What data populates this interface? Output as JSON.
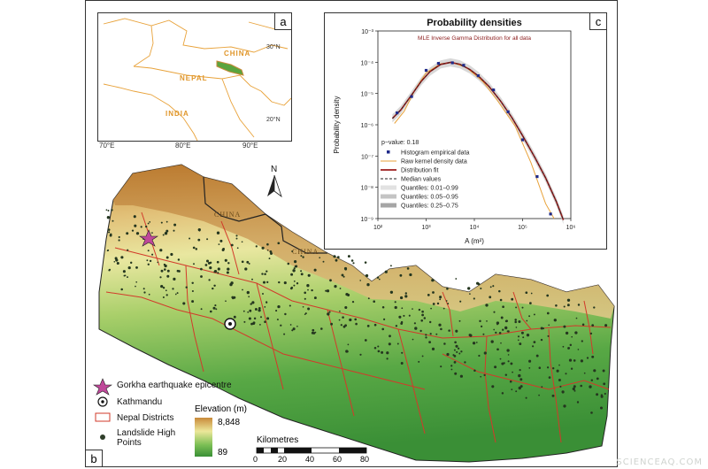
{
  "panels": {
    "a": "a",
    "b": "b",
    "c": "c"
  },
  "inset_map": {
    "countries": [
      "CHINA",
      "NEPAL",
      "INDIA"
    ],
    "lat_labels": [
      "30°N",
      "20°N"
    ],
    "lon_labels": [
      "70°E",
      "80°E",
      "90°E"
    ]
  },
  "main_map": {
    "north_label": "N",
    "country_labels": [
      "CHINA",
      "CHINA"
    ],
    "landslide_density": "high in hills and mid-mountains, sparse in lowland south",
    "epicentre": "Gorkha earthquake epicentre",
    "city": "Kathmandu"
  },
  "legend": {
    "epicentre": "Gorkha earthquake epicentre",
    "city": "Kathmandu",
    "districts": "Nepal Districts",
    "landslides": "Landslide High Points",
    "elevation_title": "Elevation (m)",
    "elevation_max": "8,848",
    "elevation_min": "89",
    "scale_title": "Kilometres",
    "scale_ticks": [
      "0",
      "20",
      "40",
      "60",
      "80"
    ]
  },
  "colors": {
    "elev_high": "#c98a3a",
    "elev_mid": "#e7e59a",
    "elev_low": "#3f9a3a",
    "district_line": "#d23a2a",
    "fit_line": "#9b1c1c",
    "kernel_line": "#e8a23a",
    "points": "#1f2a8a",
    "epicentre": "#c0489a"
  },
  "chart_data": {
    "type": "line",
    "title": "Probability densities",
    "subtitle": "MLE Inverse Gamma Distribution for all data",
    "xlabel": "A (m²)",
    "ylabel": "Probability density",
    "x_scale": "log",
    "y_scale": "log",
    "xlim": [
      100,
      1000000
    ],
    "ylim": [
      1e-09,
      0.001
    ],
    "x_ticks": [
      "10²",
      "10³",
      "10⁴",
      "10⁵",
      "10⁶"
    ],
    "y_ticks": [
      "10⁻³",
      "10⁻⁴",
      "10⁻⁵",
      "10⁻⁶",
      "10⁻⁷",
      "10⁻⁸",
      "10⁻⁹"
    ],
    "annotation": "p−value: 0.18",
    "legend": [
      "Histogram empirical data",
      "Raw kernel density data",
      "Distribution fit",
      "Median values",
      "Quantiles: 0.01−0.99",
      "Quantiles: 0.05−0.95",
      "Quantiles: 0.25−0.75"
    ],
    "series": [
      {
        "name": "Histogram empirical data",
        "x": [
          250,
          500,
          1000,
          1800,
          3500,
          6000,
          12000,
          25000,
          50000,
          100000,
          200000,
          380000
        ],
        "y": [
          2.4e-06,
          8e-06,
          5.5e-05,
          9.2e-05,
          9.6e-05,
          8e-05,
          3.7e-05,
          1.3e-05,
          2.6e-06,
          3.3e-07,
          2.2e-08,
          1.4e-09
        ]
      },
      {
        "name": "Distribution fit",
        "x": [
          200,
          300,
          500,
          800,
          1200,
          2000,
          3200,
          5000,
          8000,
          12000,
          20000,
          35000,
          60000,
          100000,
          180000,
          300000,
          500000,
          700000
        ],
        "y": [
          1.6e-06,
          3e-06,
          9e-06,
          2.5e-05,
          5e-05,
          8.5e-05,
          9.9e-05,
          8.6e-05,
          5.9e-05,
          3.7e-05,
          1.7e-05,
          5.7e-06,
          1.7e-06,
          4.5e-07,
          9e-08,
          2e-08,
          3.5e-09,
          9e-10
        ]
      },
      {
        "name": "Raw kernel density data",
        "x": [
          220,
          350,
          600,
          1000,
          2000,
          3500,
          7000,
          15000,
          30000,
          70000,
          150000,
          300000,
          450000
        ],
        "y": [
          1.1e-06,
          2.7e-06,
          1.4e-05,
          4.6e-05,
          8.9e-05,
          9.8e-05,
          6.6e-05,
          2.4e-05,
          6e-06,
          9e-07,
          6e-08,
          3e-09,
          1e-09
        ]
      }
    ]
  },
  "watermark": "SCIENCEAQ.COM"
}
